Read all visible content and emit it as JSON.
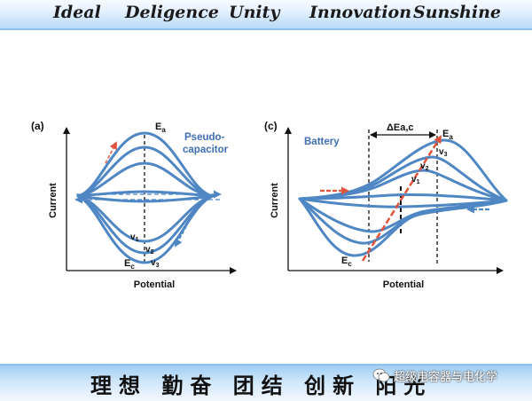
{
  "header": {
    "mottos": [
      "Ideal",
      "Deligence",
      "Unity",
      "Innovation",
      "Sunshine"
    ]
  },
  "footer": {
    "chinese_motto": "理想 勤奋 团结 创新 阳光",
    "watermark": "超级电容器与电化学"
  },
  "panel_a": {
    "tag": "(a)",
    "title_line1": "Pseudo-",
    "title_line2": "capacitor",
    "ylabel": "Current",
    "xlabel": "Potential",
    "Ea": "E",
    "Ea_sub": "a",
    "Ec": "E",
    "Ec_sub": "c",
    "v1": "v",
    "v1_sub": "1",
    "v2": "v",
    "v2_sub": "2",
    "v3": "v",
    "v3_sub": "3"
  },
  "panel_c": {
    "tag": "(c)",
    "title": "Battery",
    "ylabel": "Current",
    "xlabel": "Potential",
    "delta": "ΔEa,c",
    "Ea": "E",
    "Ea_sub": "a",
    "Ec": "E",
    "Ec_sub": "c",
    "v1": "v",
    "v1_sub": "1",
    "v2": "v",
    "v2_sub": "2",
    "v3": "v",
    "v3_sub": "3"
  },
  "colors": {
    "curve": "#4f86c4",
    "arrow_red": "#e0533d",
    "arrow_blue": "#4f86c4",
    "title_blue": "#3f6fb5"
  }
}
